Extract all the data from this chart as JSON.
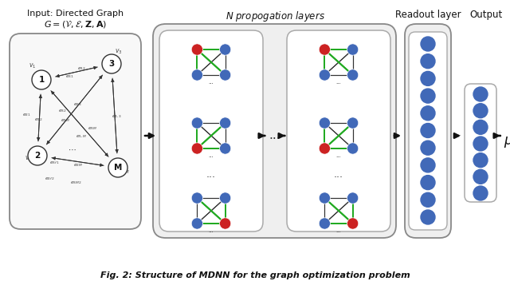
{
  "title": "Fig. 2: Structure of MDNN for the graph optimization problem",
  "input_label": "Input: Directed Graph",
  "n_prop_label": "N propogation layers",
  "readout_label": "Readout layer",
  "output_label": "Output",
  "mu_label": "$\\mu$",
  "bg_color": "#ffffff",
  "node_blue": "#4169b8",
  "node_red": "#cc2222",
  "node_white": "#ffffff",
  "edge_black": "#333333",
  "edge_green": "#22aa22",
  "edge_gray": "#888888"
}
